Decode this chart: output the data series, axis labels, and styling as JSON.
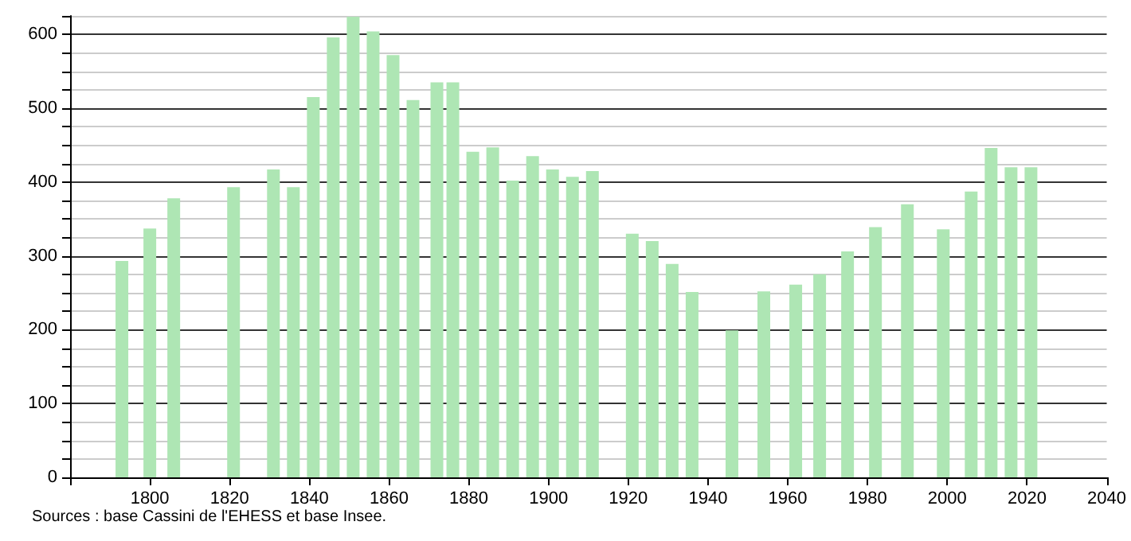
{
  "chart_data": {
    "type": "bar",
    "x": [
      1793,
      1800,
      1806,
      1821,
      1831,
      1836,
      1841,
      1846,
      1851,
      1856,
      1861,
      1866,
      1872,
      1876,
      1881,
      1886,
      1891,
      1896,
      1901,
      1906,
      1911,
      1921,
      1926,
      1931,
      1936,
      1946,
      1954,
      1962,
      1968,
      1975,
      1982,
      1990,
      1999,
      2006,
      2011,
      2016,
      2021
    ],
    "values": [
      293,
      337,
      378,
      393,
      417,
      393,
      515,
      596,
      624,
      604,
      572,
      511,
      535,
      535,
      441,
      447,
      402,
      435,
      417,
      407,
      415,
      330,
      320,
      289,
      251,
      199,
      252,
      261,
      275,
      306,
      339,
      370,
      336,
      387,
      446,
      420,
      420
    ],
    "color": "#aee6b4",
    "xlim": [
      1780,
      2040
    ],
    "xticks": [
      {
        "value": 1780,
        "label": null
      },
      1800,
      1820,
      1840,
      1860,
      1880,
      1900,
      1920,
      1940,
      1960,
      1980,
      2000,
      2020,
      2040
    ],
    "ylim": [
      0,
      625
    ],
    "yticks": [
      0,
      {
        "value": 25,
        "label": null
      },
      {
        "value": 50,
        "label": null
      },
      {
        "value": 75,
        "label": null
      },
      100,
      {
        "value": 125,
        "label": null
      },
      {
        "value": 150,
        "label": null
      },
      {
        "value": 175,
        "label": null
      },
      200,
      {
        "value": 225,
        "label": null
      },
      {
        "value": 250,
        "label": null
      },
      {
        "value": 275,
        "label": null
      },
      300,
      {
        "value": 325,
        "label": null
      },
      {
        "value": 350,
        "label": null
      },
      {
        "value": 375,
        "label": null
      },
      400,
      {
        "value": 425,
        "label": null
      },
      {
        "value": 450,
        "label": null
      },
      {
        "value": 475,
        "label": null
      },
      500,
      {
        "value": 525,
        "label": null
      },
      {
        "value": 550,
        "label": null
      },
      {
        "value": 575,
        "label": null
      },
      600,
      {
        "value": 625,
        "label": null
      }
    ],
    "grid": "y",
    "annotations": [
      "Sources : base Cassini de l'EHESS et base Insee."
    ]
  }
}
